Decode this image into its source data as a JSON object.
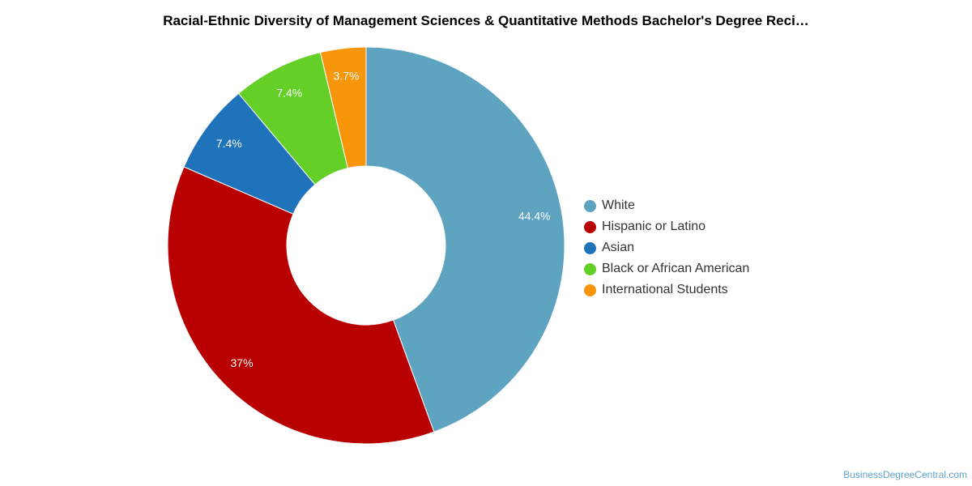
{
  "chart_data": {
    "type": "pie",
    "donut": true,
    "title": "Racial-Ethnic Diversity of Management Sciences & Quantitative Methods Bachelor's Degree Reci…",
    "categories": [
      "White",
      "Hispanic or Latino",
      "Asian",
      "Black or African American",
      "International Students"
    ],
    "values": [
      44.4,
      37,
      7.4,
      7.4,
      3.7
    ],
    "data_labels": [
      "44.4%",
      "37%",
      "7.4%",
      "7.4%",
      "3.7%"
    ],
    "colors": [
      "#5ea3c0",
      "#b80000",
      "#1f73bb",
      "#63cf27",
      "#f7960a"
    ],
    "legend": "right"
  },
  "watermark": "BusinessDegreeCentral.com"
}
